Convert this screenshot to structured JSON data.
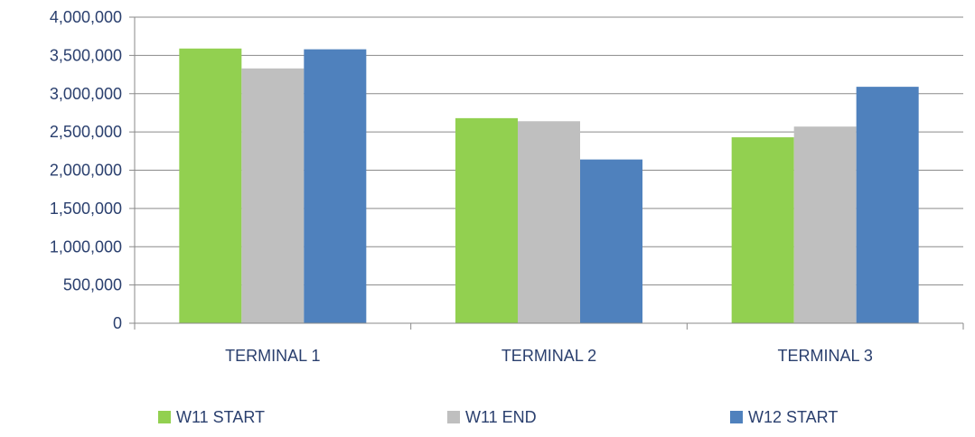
{
  "chart_data": {
    "type": "bar",
    "categories": [
      "TERMINAL 1",
      "TERMINAL 2",
      "TERMINAL 3"
    ],
    "series": [
      {
        "name": "W11 START",
        "color": "#92d050",
        "values": [
          3590000,
          2680000,
          2430000
        ]
      },
      {
        "name": "W11 END",
        "color": "#bfbfbf",
        "values": [
          3330000,
          2640000,
          2570000
        ]
      },
      {
        "name": "W12 START",
        "color": "#4f81bd",
        "values": [
          3580000,
          2140000,
          3090000
        ]
      }
    ],
    "yticks": [
      "0",
      "500,000",
      "1,000,000",
      "1,500,000",
      "2,000,000",
      "2,500,000",
      "3,000,000",
      "3,500,000",
      "4,000,000"
    ],
    "ylim": [
      0,
      4000000
    ],
    "grid": true,
    "legend_position": "bottom"
  }
}
